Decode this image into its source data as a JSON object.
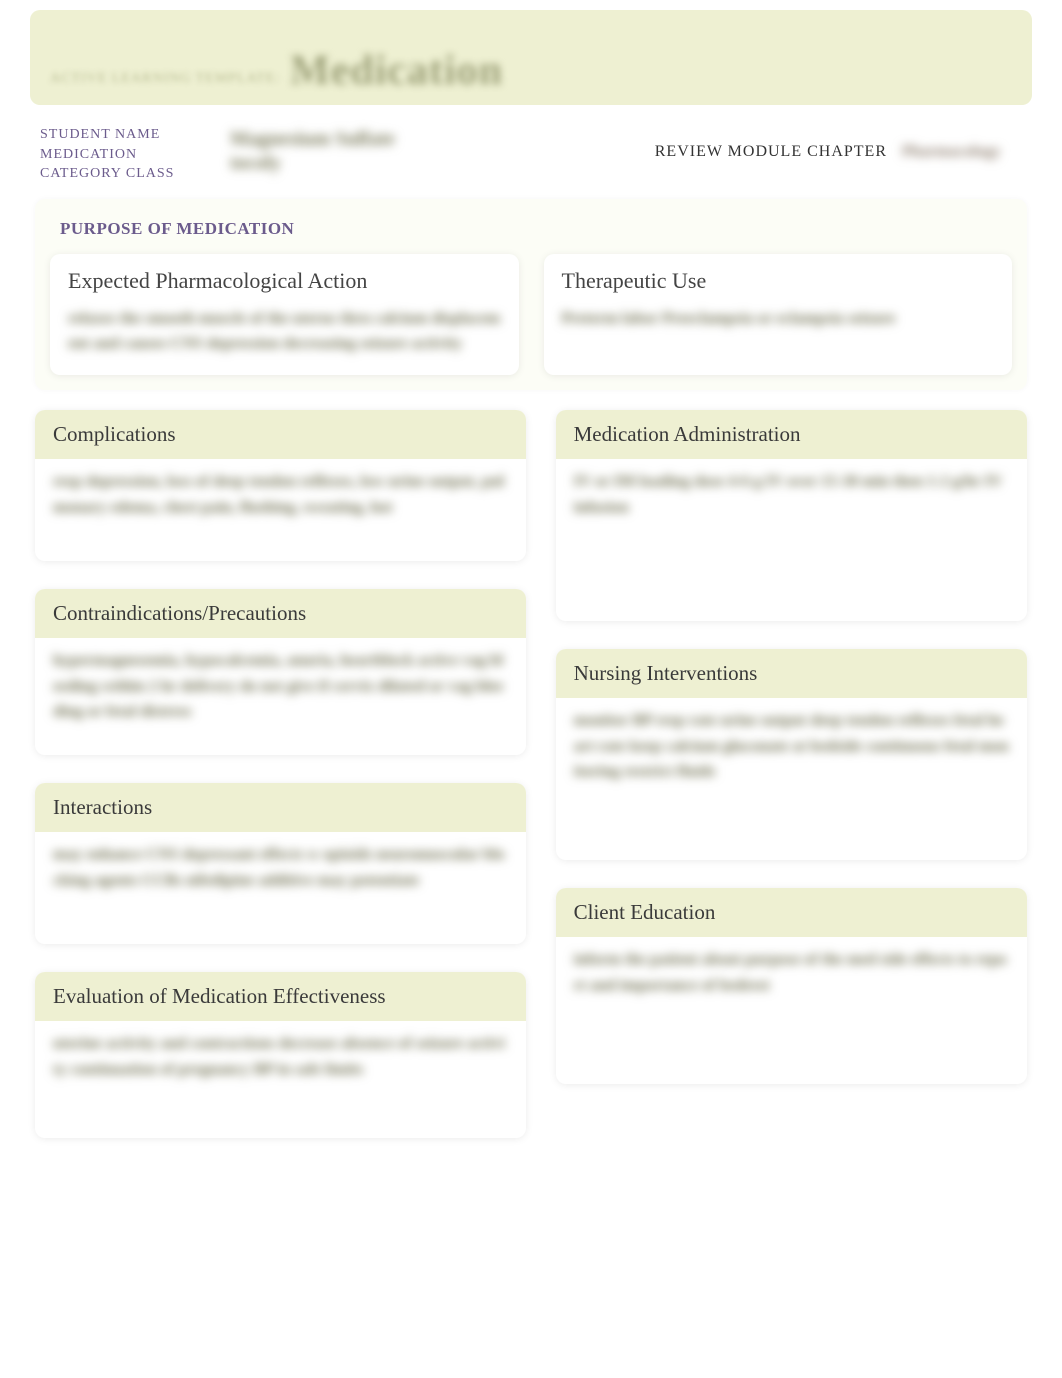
{
  "colors": {
    "banner_bg": "#eef0d2",
    "purpose_bg": "#fcfdf6",
    "label_purple": "#6b5b8c",
    "text_dark": "#333333",
    "blur_text": "#6a6a4a",
    "card_bg": "#ffffff",
    "shadow": "rgba(0,0,0,0.08)"
  },
  "typography": {
    "family": "Georgia, Times New Roman, serif",
    "header_size_pt": 16,
    "label_size_pt": 11,
    "banner_large_pt": 32
  },
  "banner": {
    "small_text": "ACTIVE LEARNING TEMPLATE:",
    "large_text": "Medication"
  },
  "meta": {
    "student_label": "STUDENT NAME",
    "medication_label": "MEDICATION",
    "category_label": "CATEGORY CLASS",
    "review_label": "REVIEW MODULE CHAPTER",
    "medication_value_blurred": "Magnesium Sulfate",
    "category_value_blurred": "tocoly",
    "review_value_blurred": "Pharmacology"
  },
  "purpose": {
    "title": "PURPOSE OF MEDICATION",
    "expected": {
      "header": "Expected Pharmacological Action",
      "body_blurred": "relaxes the smooth muscle of the uterus thru calcium displacement and causes CNS depression decreasing seizure activity"
    },
    "therapeutic": {
      "header": "Therapeutic Use",
      "body_blurred": "Preterm labor Preeclampsia or eclampsia seizure"
    }
  },
  "sections": {
    "complications": {
      "header": "Complications",
      "body_blurred": "resp depression, loss of deep tendon reflexes, low urine output, pulmonary edema, chest pain, flushing, sweating, hot"
    },
    "contraindications": {
      "header": "Contraindications/Precautions",
      "body_blurred": "hypermagnesemia, hypocalcemia, anuria, heartblock active vag bleeding within 2 hr delivery do not give if cervix dilated or vag bleeding or fetal distress"
    },
    "interactions": {
      "header": "Interactions",
      "body_blurred": "may enhance CNS depressant effects w opioids neuromuscular blocking agents CCBs nifedipine additive may potentiate"
    },
    "evaluation": {
      "header": "Evaluation of Medication Effectiveness",
      "body_blurred": "uterine activity and contractions decrease absence of seizure activity continuation of pregnancy BP in safe limits"
    },
    "administration": {
      "header": "Medication Administration",
      "body_blurred": "IV or IM loading dose 4-6 g IV over 15-30 min then 1-2 g/hr IV infusion"
    },
    "nursing": {
      "header": "Nursing Interventions",
      "body_blurred": "monitor BP resp rate urine output deep tendon reflexes fetal heart rate keep calcium gluconate at bedside continuous fetal monitoring restrict fluids"
    },
    "client_education": {
      "header": "Client Education",
      "body_blurred": "inform the patient about purpose of the med side effects to report and importance of bedrest"
    }
  }
}
